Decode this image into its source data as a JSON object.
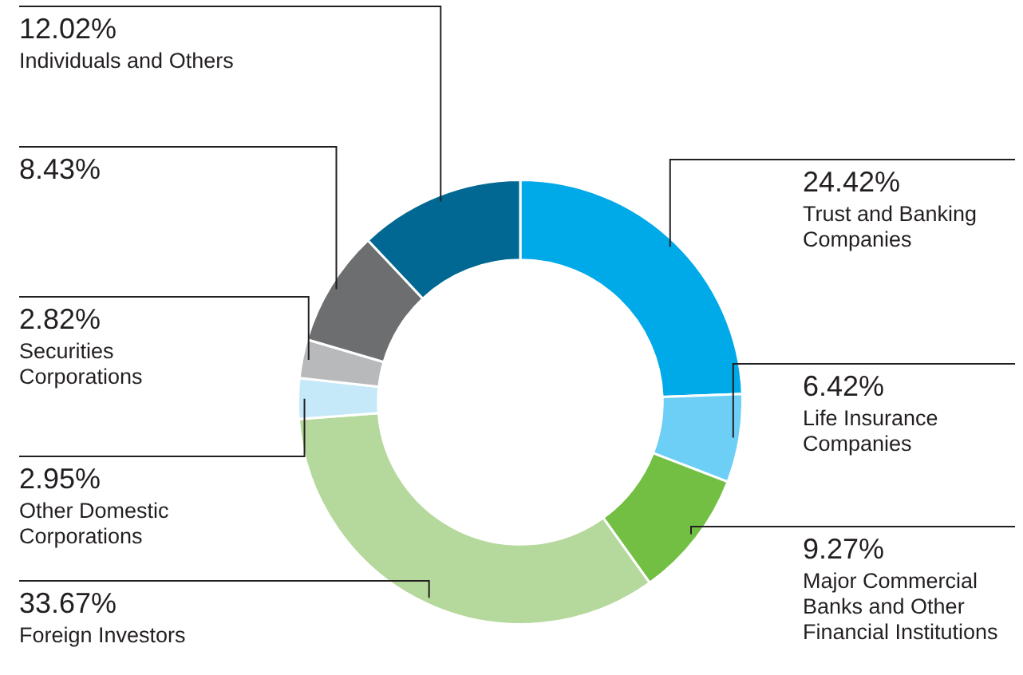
{
  "chart_data": {
    "type": "donut",
    "categories": [
      "Trust and Banking Companies",
      "Life Insurance Companies",
      "Major Commercial Banks and Other Financial Institutions",
      "Foreign Investors",
      "Other Domestic Corporations",
      "Securities Corporations",
      null,
      "Individuals and Others"
    ],
    "values": [
      24.42,
      6.42,
      9.27,
      33.67,
      2.95,
      2.82,
      8.43,
      12.02
    ],
    "value_labels": [
      "24.42%",
      "6.42%",
      "9.27%",
      "33.67%",
      "2.95%",
      "2.82%",
      "8.43%",
      "12.02%"
    ],
    "colors": [
      "#00a9e8",
      "#6dcff6",
      "#72bf44",
      "#b5d99c",
      "#c6e9fa",
      "#b8b9bb",
      "#6d6e70",
      "#006892"
    ],
    "legend": false
  }
}
